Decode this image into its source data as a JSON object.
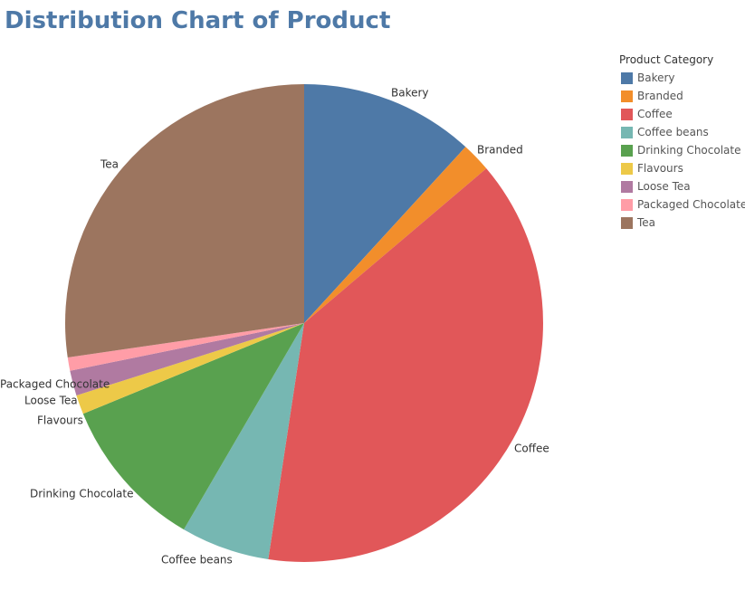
{
  "chart_data": {
    "type": "pie",
    "title": "Distribution Chart of Product",
    "legend_title": "Product Category",
    "legend_position": "top-right",
    "categories": [
      "Bakery",
      "Branded",
      "Coffee",
      "Coffee beans",
      "Drinking Chocolate",
      "Flavours",
      "Loose Tea",
      "Packaged Chocolate",
      "Tea"
    ],
    "values": [
      11.8,
      2.0,
      38.6,
      6.0,
      10.4,
      1.3,
      1.7,
      0.9,
      27.3
    ],
    "colors": [
      "#4e79a7",
      "#f28e2b",
      "#e15759",
      "#76b7b2",
      "#59a14f",
      "#edc948",
      "#b07aa1",
      "#ff9da7",
      "#9c755f"
    ],
    "units": "percent share (estimated)"
  }
}
